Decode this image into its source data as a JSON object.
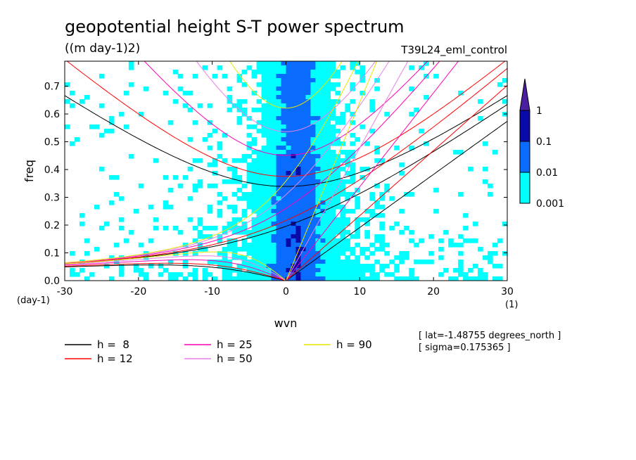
{
  "chart_data": {
    "type": "heatmap",
    "title": "geopotential height S-T power spectrum",
    "subtitle": "((m day-1)2)",
    "run_label": "T39L24_eml_control",
    "xlabel": "wvn",
    "ylabel": "freq",
    "x_unit": "(1)",
    "y_unit": "(day-1)",
    "xlim": [
      -30,
      30
    ],
    "ylim": [
      0,
      0.79
    ],
    "x_ticks": [
      -30,
      -20,
      -10,
      0,
      10,
      20,
      30
    ],
    "x_tick_labels": [
      "-30",
      "-20",
      "-10",
      "0",
      "10",
      "20",
      "30"
    ],
    "y_ticks": [
      0.0,
      0.1,
      0.2,
      0.3,
      0.4,
      0.5,
      0.6,
      0.7
    ],
    "y_tick_labels": [
      "0.0",
      "0.1",
      "0.2",
      "0.3",
      "0.4",
      "0.5",
      "0.6",
      "0.7"
    ],
    "colorbar": {
      "levels": [
        0.001,
        0.01,
        0.1,
        1
      ],
      "labels": [
        "0.001",
        "0.01",
        "0.1",
        "1"
      ],
      "colors": [
        "#00ffff",
        "#0a6cff",
        "#0a0aa6",
        "#4a1fa0"
      ],
      "extend": "max"
    },
    "dispersion_curves": [
      {
        "label": "h =  8",
        "h": 8,
        "color": "#000000"
      },
      {
        "label": "h = 12",
        "h": 12,
        "color": "#ff0000"
      },
      {
        "label": "h = 25",
        "h": 25,
        "color": "#ff00b4"
      },
      {
        "label": "h = 50",
        "h": 50,
        "color": "#e880e8"
      },
      {
        "label": "h = 90",
        "h": 90,
        "color": "#e6e600"
      }
    ],
    "annotations": [
      "[ lat=-1.48755 degrees_north ]",
      "[ sigma=0.175365 ]"
    ]
  },
  "colors": {
    "background": "#ffffff",
    "axis": "#000000"
  }
}
